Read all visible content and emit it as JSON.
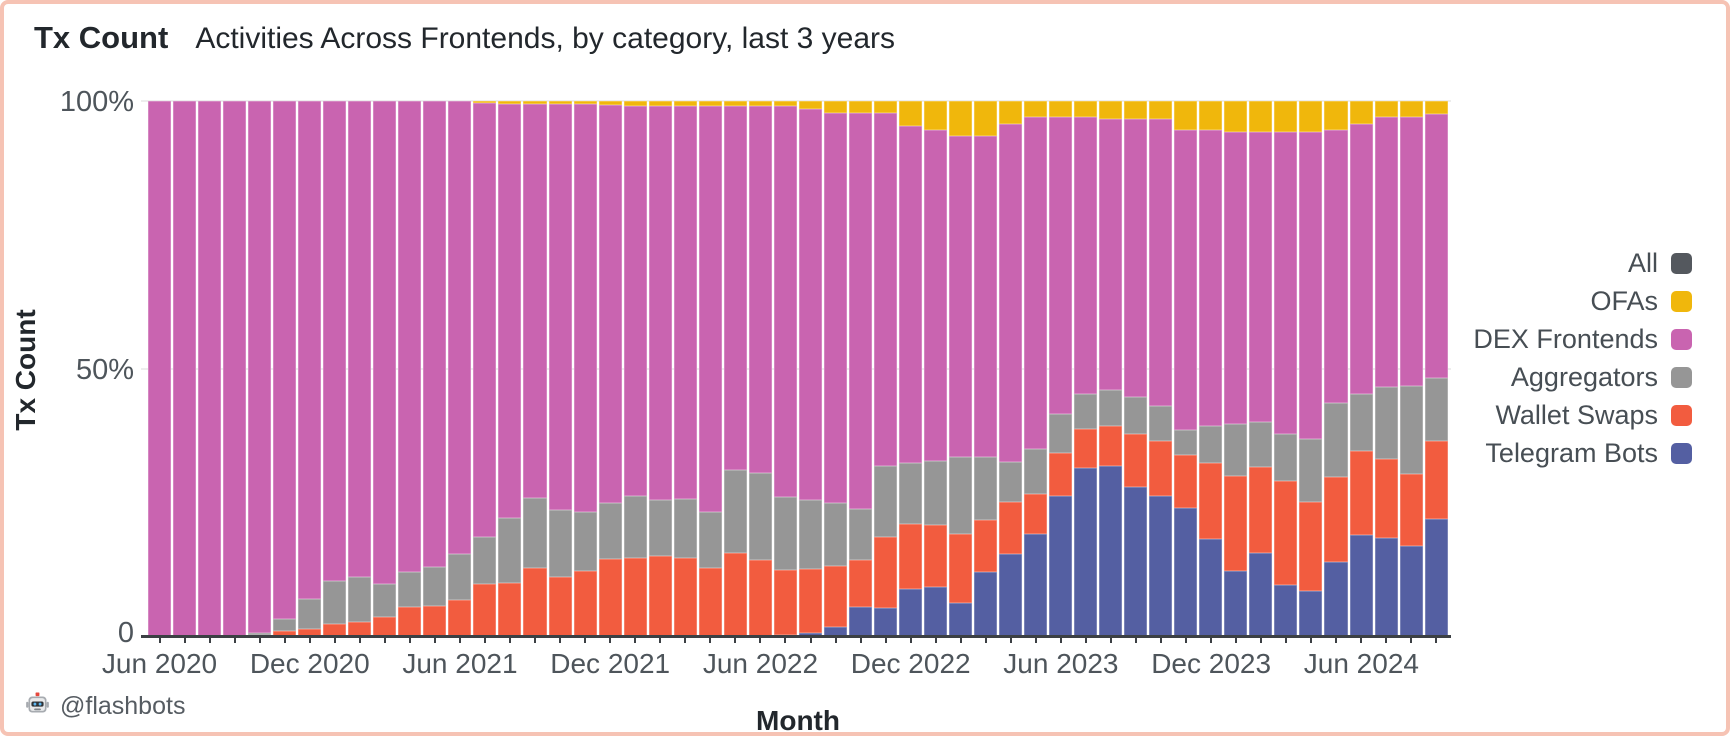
{
  "header": {
    "title": "Tx Count",
    "subtitle": "Activities Across Frontends, by category, last 3 years"
  },
  "axes": {
    "y_title": "Tx Count",
    "x_title": "Month",
    "y_ticks": [
      "100%",
      "50%",
      "0"
    ],
    "x_ticks": [
      "Jun 2020",
      "Dec 2020",
      "Jun 2021",
      "Dec 2021",
      "Jun 2022",
      "Dec 2022",
      "Jun 2023",
      "Dec 2023",
      "Jun 2024"
    ]
  },
  "legend": {
    "items": [
      {
        "label": "All",
        "color": "#54585e"
      },
      {
        "label": "OFAs",
        "color": "#f0b70c"
      },
      {
        "label": "DEX Frontends",
        "color": "#c964b0"
      },
      {
        "label": "Aggregators",
        "color": "#969696"
      },
      {
        "label": "Wallet Swaps",
        "color": "#f25c3f"
      },
      {
        "label": "Telegram Bots",
        "color": "#545fa2"
      }
    ]
  },
  "footer": {
    "handle": "@flashbots",
    "icon": "flashbots-robot-icon"
  },
  "chart_data": {
    "type": "bar",
    "stacking": "percent",
    "title": "Activities Across Frontends, by category, last 3 years",
    "xlabel": "Month",
    "ylabel": "Tx Count",
    "ylim": [
      0,
      100
    ],
    "grid": "horizontal at 50% and 100%",
    "legend_position": "right",
    "legend_entries": [
      "All",
      "OFAs",
      "DEX Frontends",
      "Aggregators",
      "Wallet Swaps",
      "Telegram Bots"
    ],
    "categories": [
      "Jun 2020",
      "Jul 2020",
      "Aug 2020",
      "Sep 2020",
      "Oct 2020",
      "Nov 2020",
      "Dec 2020",
      "Jan 2021",
      "Feb 2021",
      "Mar 2021",
      "Apr 2021",
      "May 2021",
      "Jun 2021",
      "Jul 2021",
      "Aug 2021",
      "Sep 2021",
      "Oct 2021",
      "Nov 2021",
      "Dec 2021",
      "Jan 2022",
      "Feb 2022",
      "Mar 2022",
      "Apr 2022",
      "May 2022",
      "Jun 2022",
      "Jul 2022",
      "Aug 2022",
      "Sep 2022",
      "Oct 2022",
      "Nov 2022",
      "Dec 2022",
      "Jan 2023",
      "Feb 2023",
      "Mar 2023",
      "Apr 2023",
      "May 2023",
      "Jun 2023",
      "Jul 2023",
      "Aug 2023",
      "Sep 2023",
      "Oct 2023",
      "Nov 2023",
      "Dec 2023",
      "Jan 2024",
      "Feb 2024",
      "Mar 2024",
      "Apr 2024",
      "May 2024",
      "Jun 2024",
      "Jul 2024",
      "Aug 2024",
      "Sep 2024"
    ],
    "units": "percent of monthly tx count",
    "series": [
      {
        "name": "Telegram Bots",
        "color": "#545fa2",
        "values": [
          0,
          0,
          0,
          0,
          0,
          0,
          0,
          0,
          0,
          0,
          0,
          0,
          0,
          0,
          0,
          0,
          0,
          0,
          0,
          0,
          0,
          0,
          0,
          0,
          0,
          0.2,
          0.5,
          1.7,
          5.5,
          5.2,
          8.8,
          9.2,
          6.1,
          12,
          15.3,
          19.1,
          26.2,
          31.4,
          31.7,
          27.8,
          26.1,
          23.9,
          18.1,
          12.1,
          15.5,
          9.6,
          8.5,
          13.8,
          18.9,
          18.3,
          16.9,
          21.9
        ]
      },
      {
        "name": "Wallet Swaps",
        "color": "#f25c3f",
        "values": [
          0,
          0,
          0,
          0,
          0.2,
          1,
          1.3,
          2.2,
          2.7,
          3.5,
          5.5,
          5.7,
          6.7,
          9.8,
          10,
          12.8,
          11.1,
          12.1,
          14.4,
          14.5,
          15,
          14.5,
          12.7,
          15.6,
          14.2,
          12.2,
          12,
          11.3,
          8.7,
          13.4,
          12.1,
          11.6,
          13,
          9.7,
          9.7,
          7.4,
          8.1,
          7.3,
          7.5,
          10,
          10.4,
          10,
          14.3,
          17.9,
          16.1,
          19.4,
          16.5,
          15.9,
          15.6,
          14.7,
          13.4,
          14.6
        ]
      },
      {
        "name": "Aggregators",
        "color": "#969696",
        "values": [
          0,
          0,
          0,
          0,
          0.3,
          2.1,
          5.6,
          8,
          8.3,
          6.3,
          6.4,
          7.2,
          8.7,
          8.7,
          12,
          13,
          12.5,
          11,
          10.5,
          11.7,
          10.4,
          11.1,
          10.5,
          15.4,
          16.2,
          13.6,
          12.9,
          11.9,
          9.5,
          13.1,
          11.4,
          11.9,
          14.4,
          11.8,
          7.5,
          8.5,
          7.2,
          6.5,
          6.8,
          6.9,
          6.5,
          4.6,
          6.8,
          9.7,
          8.4,
          8.8,
          11.8,
          13.8,
          10.7,
          13.5,
          16.5,
          11.8
        ]
      },
      {
        "name": "DEX Frontends",
        "color": "#c964b0",
        "values": [
          100,
          100,
          100,
          100,
          99.5,
          96.9,
          93.1,
          89.8,
          89,
          90.2,
          88.1,
          87.1,
          84.6,
          81.2,
          77.5,
          73.6,
          75.8,
          76.3,
          74.3,
          72.9,
          73.7,
          73.5,
          75.8,
          68,
          68.6,
          73,
          73.1,
          72.9,
          74,
          66,
          63.1,
          61.8,
          60,
          60,
          63.3,
          62,
          55.5,
          51.8,
          50.6,
          51.9,
          53.6,
          56,
          55.3,
          54.6,
          54.3,
          56.5,
          57.5,
          51.1,
          50.6,
          50.5,
          50.2,
          49.2
        ]
      },
      {
        "name": "OFAs",
        "color": "#f0b70c",
        "values": [
          0,
          0,
          0,
          0,
          0,
          0,
          0,
          0,
          0,
          0,
          0,
          0,
          0,
          0.3,
          0.5,
          0.6,
          0.6,
          0.6,
          0.8,
          0.9,
          0.9,
          0.9,
          1,
          1,
          1,
          1,
          1.5,
          2.2,
          2.3,
          2.3,
          4.6,
          5.5,
          6.5,
          6.5,
          4.2,
          3,
          3,
          3,
          3.4,
          3.4,
          3.4,
          5.5,
          5.5,
          5.7,
          5.7,
          5.7,
          5.7,
          5.4,
          4.2,
          3,
          3,
          2.5
        ]
      }
    ]
  }
}
